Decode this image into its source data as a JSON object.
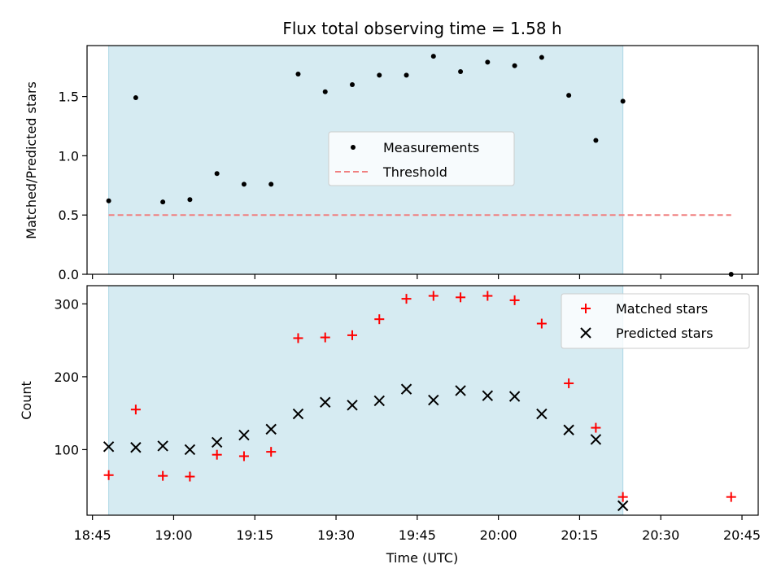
{
  "chart_data": [
    {
      "type": "scatter",
      "title": "Flux total observing time = 1.58 h",
      "xlabel": "",
      "ylabel": "Matched/Predicted stars",
      "xlim": [
        "18:44",
        "20:48"
      ],
      "ylim": [
        0,
        1.93
      ],
      "yticks": [
        "0.0",
        "0.5",
        "1.0",
        "1.5"
      ],
      "shaded_region": {
        "from": "18:48",
        "to": "20:23",
        "color": "#add8e6"
      },
      "legend_position": "center",
      "grid": false,
      "series": [
        {
          "name": "Measurements",
          "marker": "dot",
          "color": "#000000",
          "x": [
            "18:48",
            "18:53",
            "18:58",
            "19:03",
            "19:08",
            "19:13",
            "19:18",
            "19:23",
            "19:28",
            "19:33",
            "19:38",
            "19:43",
            "19:48",
            "19:53",
            "19:58",
            "20:03",
            "20:08",
            "20:13",
            "20:18",
            "20:23",
            "20:43"
          ],
          "y": [
            0.62,
            1.49,
            0.61,
            0.63,
            0.85,
            0.76,
            0.76,
            1.69,
            1.54,
            1.6,
            1.68,
            1.68,
            1.84,
            1.71,
            1.79,
            1.76,
            1.83,
            1.51,
            1.13,
            1.46,
            0.0
          ]
        },
        {
          "name": "Threshold",
          "style": "dashed",
          "color": "#f08080",
          "x": [
            "18:48",
            "20:43"
          ],
          "y": [
            0.5,
            0.5
          ]
        }
      ]
    },
    {
      "type": "scatter",
      "title": "",
      "xlabel": "Time (UTC)",
      "ylabel": "Count",
      "xlim": [
        "18:44",
        "20:48"
      ],
      "ylim": [
        10,
        325
      ],
      "xticks": [
        "18:45",
        "19:00",
        "19:15",
        "19:30",
        "19:45",
        "20:00",
        "20:15",
        "20:30",
        "20:45"
      ],
      "yticks": [
        "100",
        "200",
        "300"
      ],
      "shaded_region": {
        "from": "18:48",
        "to": "20:23",
        "color": "#add8e6"
      },
      "legend_position": "upper right",
      "grid": false,
      "series": [
        {
          "name": "Matched stars",
          "marker": "plus",
          "color": "#ff0000",
          "x": [
            "18:48",
            "18:53",
            "18:58",
            "19:03",
            "19:08",
            "19:13",
            "19:18",
            "19:23",
            "19:28",
            "19:33",
            "19:38",
            "19:43",
            "19:48",
            "19:53",
            "19:58",
            "20:03",
            "20:08",
            "20:13",
            "20:18",
            "20:23",
            "20:43"
          ],
          "y": [
            65,
            155,
            64,
            63,
            93,
            91,
            97,
            253,
            254,
            257,
            279,
            307,
            311,
            309,
            311,
            305,
            273,
            191,
            130,
            35,
            35
          ]
        },
        {
          "name": "Predicted stars",
          "marker": "x",
          "color": "#000000",
          "x": [
            "18:48",
            "18:53",
            "18:58",
            "19:03",
            "19:08",
            "19:13",
            "19:18",
            "19:23",
            "19:28",
            "19:33",
            "19:38",
            "19:43",
            "19:48",
            "19:53",
            "19:58",
            "20:03",
            "20:08",
            "20:13",
            "20:18",
            "20:23"
          ],
          "y": [
            104,
            103,
            105,
            100,
            110,
            120,
            128,
            149,
            165,
            161,
            167,
            183,
            168,
            181,
            174,
            173,
            149,
            127,
            114,
            23
          ]
        }
      ]
    }
  ]
}
